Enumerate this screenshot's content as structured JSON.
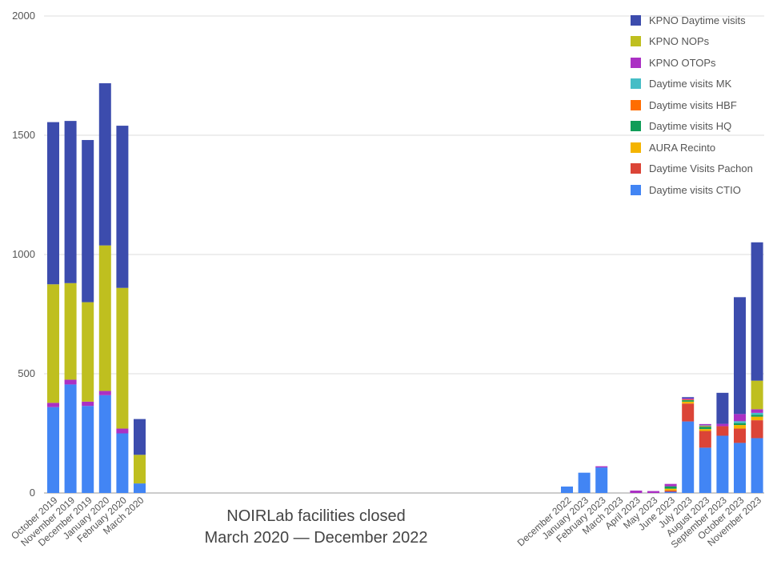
{
  "chart_data": {
    "type": "bar",
    "stacked": true,
    "ylim": [
      0,
      2000
    ],
    "yticks": [
      0,
      500,
      1000,
      1500,
      2000
    ],
    "grid": true,
    "legend_position": "top-right",
    "categories": [
      "October 2019",
      "November 2019",
      "December 2019",
      "January 2020",
      "February 2020",
      "March 2020",
      "December 2022",
      "January 2023",
      "February 2023",
      "March 2023",
      "April 2023",
      "May 2023",
      "June 2023",
      "July 2023",
      "August 2023",
      "September 2023",
      "October 2023",
      "November 2023"
    ],
    "gap_after_index": 5,
    "series": [
      {
        "name": "Daytime visits CTIO",
        "color": "#4285f4",
        "values": [
          360,
          455,
          365,
          410,
          250,
          40,
          27,
          85,
          107,
          0,
          0,
          0,
          5,
          300,
          190,
          240,
          210,
          230
        ]
      },
      {
        "name": "Daytime Visits Pachon",
        "color": "#db4437",
        "values": [
          0,
          0,
          0,
          0,
          0,
          0,
          0,
          0,
          0,
          0,
          0,
          0,
          5,
          75,
          70,
          40,
          60,
          75
        ]
      },
      {
        "name": "AURA Recinto",
        "color": "#f4b400",
        "values": [
          0,
          0,
          0,
          0,
          0,
          0,
          0,
          0,
          0,
          0,
          0,
          0,
          8,
          8,
          8,
          0,
          15,
          15
        ]
      },
      {
        "name": "Daytime visits HQ",
        "color": "#0f9d58",
        "values": [
          0,
          0,
          0,
          0,
          0,
          0,
          0,
          0,
          0,
          0,
          0,
          0,
          10,
          6,
          10,
          0,
          8,
          8
        ]
      },
      {
        "name": "Daytime visits HBF",
        "color": "#ff6d01",
        "values": [
          0,
          0,
          0,
          0,
          0,
          0,
          0,
          0,
          0,
          0,
          0,
          0,
          0,
          3,
          3,
          0,
          0,
          0
        ]
      },
      {
        "name": "Daytime visits MK",
        "color": "#46bdc6",
        "values": [
          0,
          0,
          0,
          0,
          0,
          0,
          0,
          0,
          0,
          0,
          0,
          0,
          0,
          0,
          3,
          0,
          8,
          8
        ]
      },
      {
        "name": "KPNO OTOPs",
        "color": "#ab30c4",
        "values": [
          18,
          20,
          18,
          18,
          20,
          0,
          0,
          0,
          5,
          0,
          10,
          8,
          10,
          5,
          5,
          10,
          30,
          15
        ]
      },
      {
        "name": "KPNO NOPs",
        "color": "#bfbf1f",
        "values": [
          497,
          405,
          417,
          610,
          590,
          120,
          0,
          0,
          0,
          0,
          0,
          0,
          0,
          0,
          0,
          0,
          0,
          120
        ]
      },
      {
        "name": "KPNO Daytime visits",
        "color": "#3c4cad",
        "values": [
          680,
          680,
          680,
          680,
          680,
          150,
          0,
          0,
          0,
          0,
          0,
          0,
          0,
          5,
          0,
          130,
          490,
          580
        ]
      }
    ],
    "legend_order": [
      "KPNO Daytime visits",
      "KPNO NOPs",
      "KPNO OTOPs",
      "Daytime visits MK",
      "Daytime visits HBF",
      "Daytime visits HQ",
      "AURA Recinto",
      "Daytime Visits Pachon",
      "Daytime visits CTIO"
    ],
    "annotation": [
      "NOIRLab facilities closed",
      "March 2020 — December 2022"
    ]
  }
}
